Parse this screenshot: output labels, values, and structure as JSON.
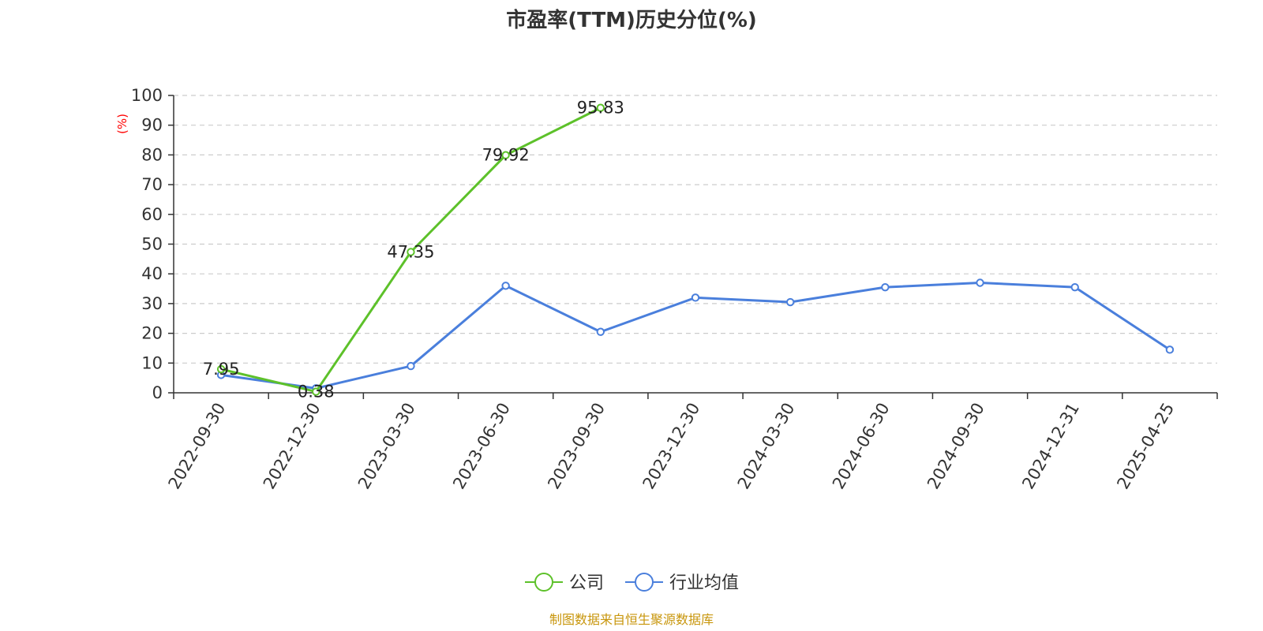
{
  "chart_data": {
    "type": "line",
    "title": "市盈率(TTM)历史分位(%)",
    "ylabel": "(%)",
    "xlabel": "",
    "ylim": [
      0,
      100
    ],
    "yticks": [
      0,
      10,
      20,
      30,
      40,
      50,
      60,
      70,
      80,
      90,
      100
    ],
    "grid": true,
    "legend_position": "bottom-center",
    "categories": [
      "2022-09-30",
      "2022-12-30",
      "2023-03-30",
      "2023-06-30",
      "2023-09-30",
      "2023-12-30",
      "2024-03-30",
      "2024-06-30",
      "2024-09-30",
      "2024-12-31",
      "2025-04-25"
    ],
    "series": [
      {
        "name": "公司",
        "color": "#5dc12a",
        "values": [
          7.95,
          0.38,
          47.35,
          79.92,
          95.83,
          null,
          null,
          null,
          null,
          null,
          null
        ],
        "show_labels": true
      },
      {
        "name": "行业均值",
        "color": "#4a7fdc",
        "values": [
          6.0,
          1.5,
          9.0,
          36.0,
          20.5,
          32.0,
          30.5,
          35.5,
          37.0,
          35.5,
          14.5
        ],
        "show_labels": false
      }
    ],
    "source": "制图数据来自恒生聚源数据库"
  }
}
